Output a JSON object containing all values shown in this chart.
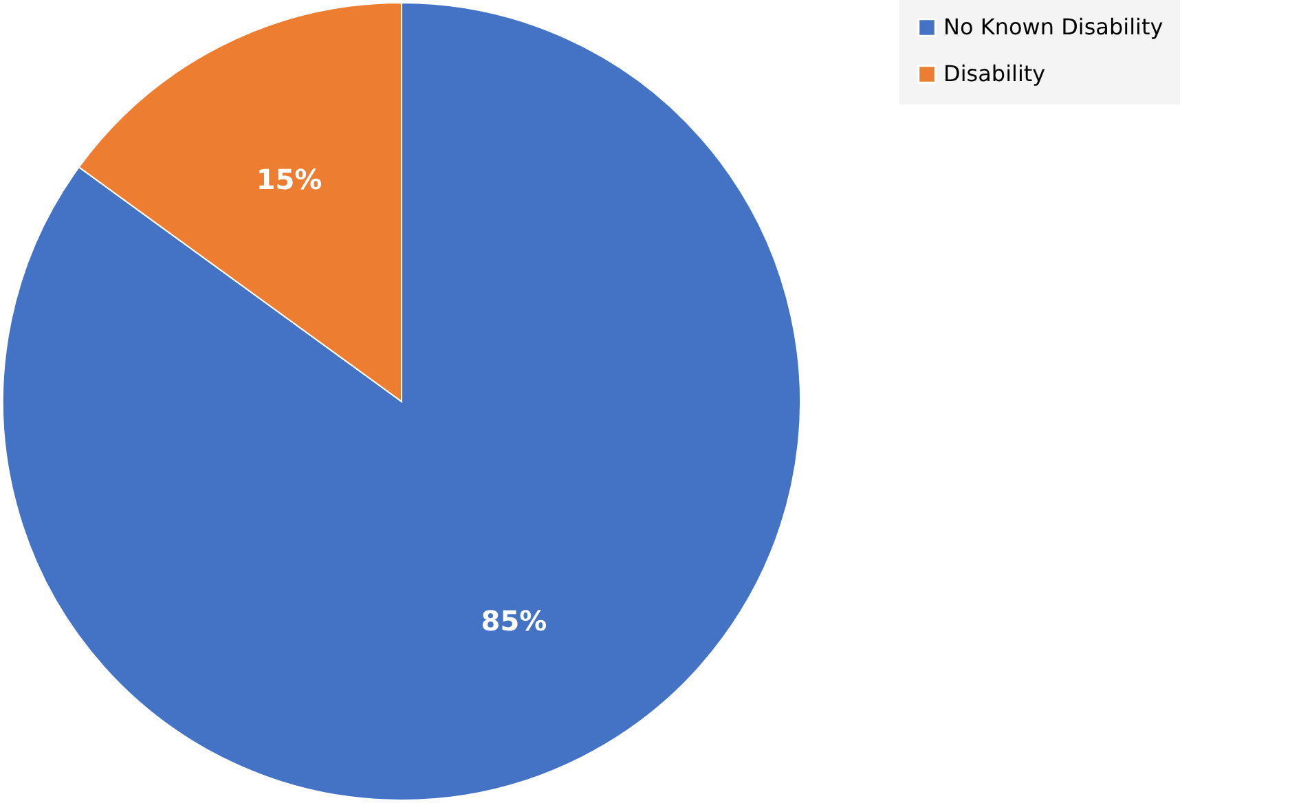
{
  "chart_data": {
    "type": "pie",
    "categories": [
      "No Known Disability",
      "Disability"
    ],
    "values": [
      85,
      15
    ],
    "colors": [
      "#4472c4",
      "#ed7d31"
    ],
    "value_labels": [
      "85%",
      "15%"
    ],
    "legend": "right"
  }
}
